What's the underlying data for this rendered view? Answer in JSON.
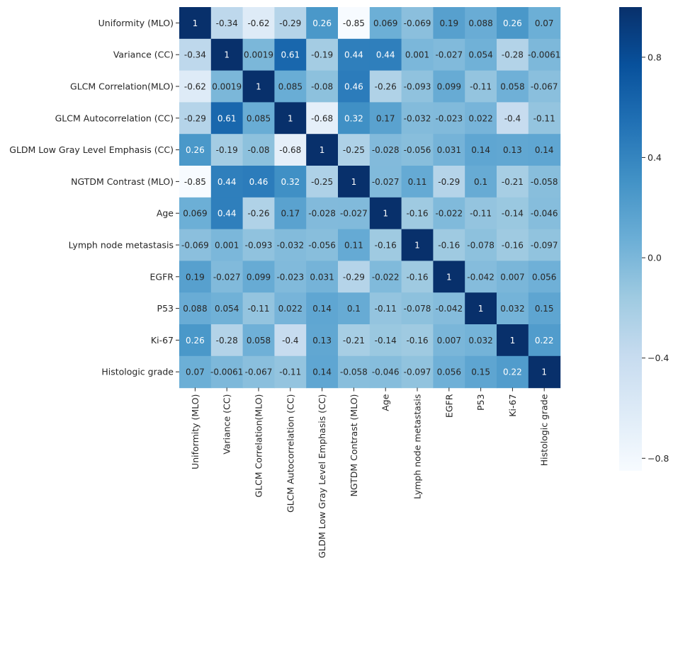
{
  "chart_data": {
    "type": "heatmap",
    "title": "",
    "xlabel": "",
    "ylabel": "",
    "labels": [
      "Uniformity (MLO)",
      "Variance (CC)",
      "GLCM Correlation(MLO)",
      "GLCM Autocorrelation (CC)",
      "GLDM Low Gray Level Emphasis (CC)",
      "NGTDM Contrast (MLO)",
      "Age",
      "Lymph node metastasis",
      "EGFR",
      "P53",
      "Ki-67",
      "Histologic grade"
    ],
    "values": [
      [
        1,
        -0.34,
        -0.62,
        -0.29,
        0.26,
        -0.85,
        0.069,
        -0.069,
        0.19,
        0.088,
        0.26,
        0.07
      ],
      [
        -0.34,
        1,
        0.0019,
        0.61,
        -0.19,
        0.44,
        0.44,
        0.001,
        -0.027,
        0.054,
        -0.28,
        -0.0061
      ],
      [
        -0.62,
        0.0019,
        1,
        0.085,
        -0.08,
        0.46,
        -0.26,
        -0.093,
        0.099,
        -0.11,
        0.058,
        -0.067
      ],
      [
        -0.29,
        0.61,
        0.085,
        1,
        -0.68,
        0.32,
        0.17,
        -0.032,
        -0.023,
        0.022,
        -0.4,
        -0.11
      ],
      [
        0.26,
        -0.19,
        -0.08,
        -0.68,
        1,
        -0.25,
        -0.028,
        -0.056,
        0.031,
        0.14,
        0.13,
        0.14
      ],
      [
        -0.85,
        0.44,
        0.46,
        0.32,
        -0.25,
        1,
        -0.027,
        0.11,
        -0.29,
        0.1,
        -0.21,
        -0.058
      ],
      [
        0.069,
        0.44,
        -0.26,
        0.17,
        -0.028,
        -0.027,
        1,
        -0.16,
        -0.022,
        -0.11,
        -0.14,
        -0.046
      ],
      [
        -0.069,
        0.001,
        -0.093,
        -0.032,
        -0.056,
        0.11,
        -0.16,
        1,
        -0.16,
        -0.078,
        -0.16,
        -0.097
      ],
      [
        0.19,
        -0.027,
        0.099,
        -0.023,
        0.031,
        -0.29,
        -0.022,
        -0.16,
        1,
        -0.042,
        0.007,
        0.056
      ],
      [
        0.088,
        0.054,
        -0.11,
        0.022,
        0.14,
        0.1,
        -0.11,
        -0.078,
        -0.042,
        1,
        0.032,
        0.15
      ],
      [
        0.26,
        -0.28,
        0.058,
        -0.4,
        0.13,
        -0.21,
        -0.14,
        -0.16,
        0.007,
        0.032,
        1,
        0.22
      ],
      [
        0.07,
        -0.0061,
        -0.067,
        -0.11,
        0.14,
        -0.058,
        -0.046,
        -0.097,
        0.056,
        0.15,
        0.22,
        1
      ]
    ],
    "colorbar": {
      "vmin": -0.85,
      "vmax": 1,
      "ticks": [
        0.8,
        0.4,
        0.0,
        -0.4,
        -0.8
      ],
      "tick_labels": [
        "0.8",
        "0.4",
        "0.0",
        "−0.4",
        "−0.8"
      ],
      "colormap": "Blues",
      "colors": [
        "#f7fbff",
        "#deebf7",
        "#c6dbef",
        "#9ecae1",
        "#6baed6",
        "#4292c6",
        "#2171b5",
        "#08519c",
        "#08306b"
      ]
    },
    "grid": false,
    "legend": "right"
  }
}
